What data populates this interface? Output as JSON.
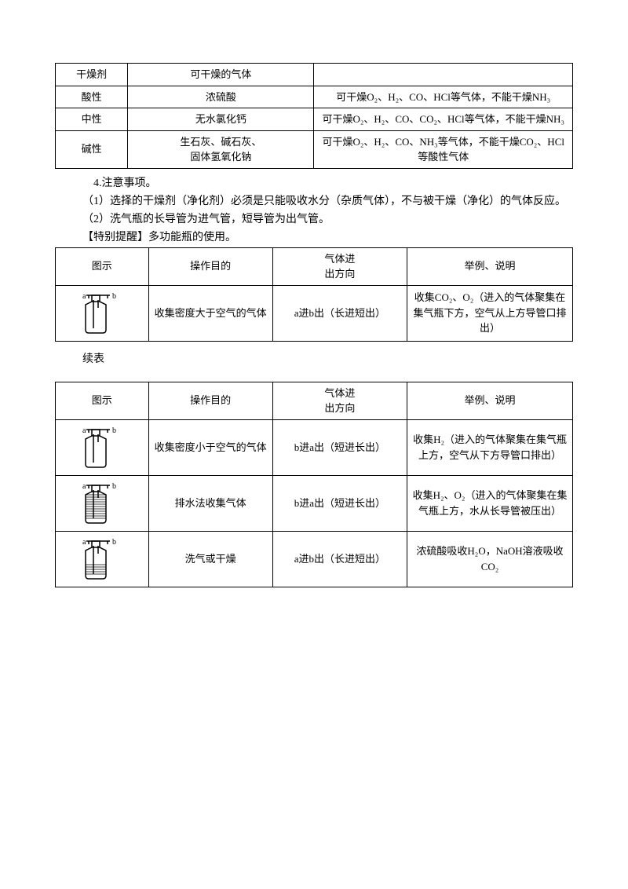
{
  "table1": {
    "headers": [
      "干燥剂",
      "可干燥的气体",
      ""
    ],
    "rows": [
      [
        "酸性",
        "浓硫酸",
        "可干燥O₂、H₂、CO、HCl等气体，不能干燥NH₃"
      ],
      [
        "中性",
        "无水氯化钙",
        "可干燥O₂、H₂、CO、CO₂、HCl等气体，不能干燥NH₃"
      ],
      [
        "碱性",
        "生石灰、碱石灰、\n固体氢氧化钠",
        "可干燥O₂、H₂、CO、NH₃等气体，不能干燥CO₂、HCl等酸性气体"
      ]
    ]
  },
  "notes": {
    "title": "4.注意事项。",
    "item1": "（1）选择的干燥剂（净化剂）必须是只能吸收水分（杂质气体），不与被干燥（净化）的气体反应。",
    "item2": "（2）洗气瓶的长导管为进气管，短导管为出气管。",
    "special": "【特别提醒】多功能瓶的使用。"
  },
  "table2": {
    "headers": [
      "图示",
      "操作目的",
      "气体进\n出方向",
      "举例、说明"
    ],
    "rows": [
      {
        "purpose": "收集密度大于空气的气体",
        "direction": "a进b出（长进短出）",
        "example": "收集CO₂、O₂（进入的气体聚集在集气瓶下方，空气从上方导管口排出）",
        "fill": "none"
      }
    ]
  },
  "continue_label": "续表",
  "table3": {
    "headers": [
      "图示",
      "操作目的",
      "气体进\n出方向",
      "举例、说明"
    ],
    "rows": [
      {
        "purpose": "收集密度小于空气的气体",
        "direction": "b进a出（短进长出）",
        "example": "收集H₂（进入的气体聚集在集气瓶上方，空气从下方导管口排出）",
        "fill": "none"
      },
      {
        "purpose": "排水法收集气体",
        "direction": "b进a出（短进长出）",
        "example": "收集H₂、O₂（进入的气体聚集在集气瓶上方，水从长导管被压出）",
        "fill": "full"
      },
      {
        "purpose": "洗气或干燥",
        "direction": "a进b出（长进短出）",
        "example": "浓硫酸吸收H₂O，NaOH溶液吸收CO₂",
        "fill": "partial"
      }
    ]
  }
}
